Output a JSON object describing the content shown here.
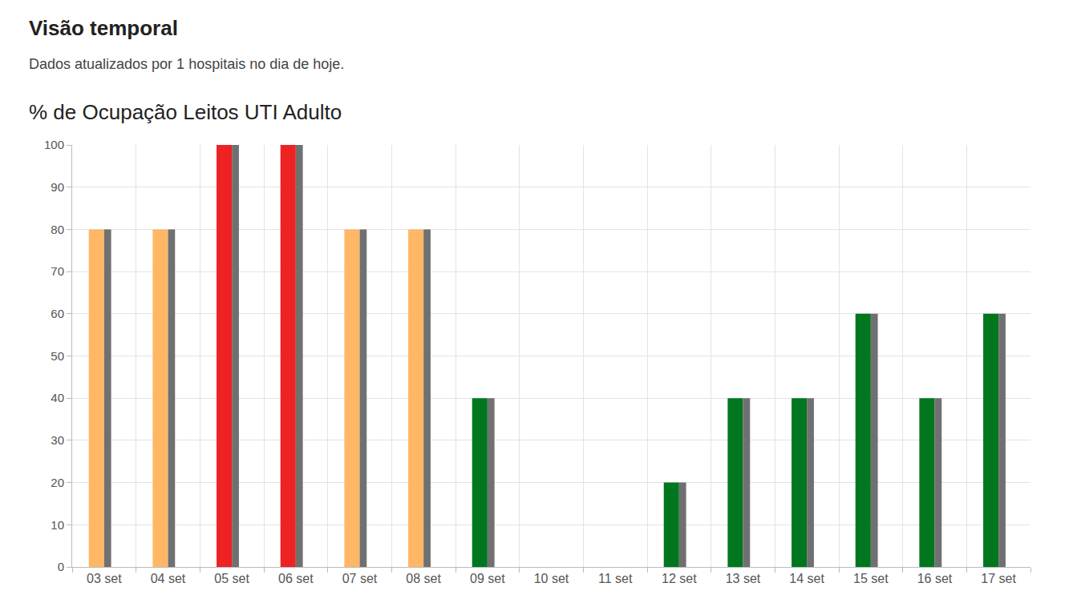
{
  "heading": "Visão temporal",
  "subheading": "Dados atualizados por 1 hospitais no dia de hoje.",
  "chart_data": {
    "type": "bar",
    "title": "% de Ocupação Leitos UTI Adulto",
    "categories": [
      "03 set",
      "04 set",
      "05 set",
      "06 set",
      "07 set",
      "08 set",
      "09 set",
      "10 set",
      "11 set",
      "12 set",
      "13 set",
      "14 set",
      "15 set",
      "16 set",
      "17 set"
    ],
    "series": [
      {
        "colors": [
          "#ffb766",
          "#ffb766",
          "#ee2222",
          "#ee2222",
          "#ffb766",
          "#ffb766",
          "#00771f",
          null,
          null,
          "#00771f",
          "#00771f",
          "#00771f",
          "#00771f",
          "#00771f",
          "#00771f"
        ],
        "values": [
          80,
          80,
          100,
          100,
          80,
          80,
          40,
          null,
          null,
          20,
          40,
          40,
          60,
          40,
          60
        ]
      },
      {
        "color": "#707070",
        "values": [
          80,
          80,
          100,
          100,
          80,
          80,
          40,
          null,
          null,
          20,
          40,
          40,
          60,
          40,
          60
        ]
      }
    ],
    "ylim": [
      0,
      100
    ],
    "yticks": [
      0,
      10,
      20,
      30,
      40,
      50,
      60,
      70,
      80,
      90,
      100
    ],
    "grid": true
  }
}
